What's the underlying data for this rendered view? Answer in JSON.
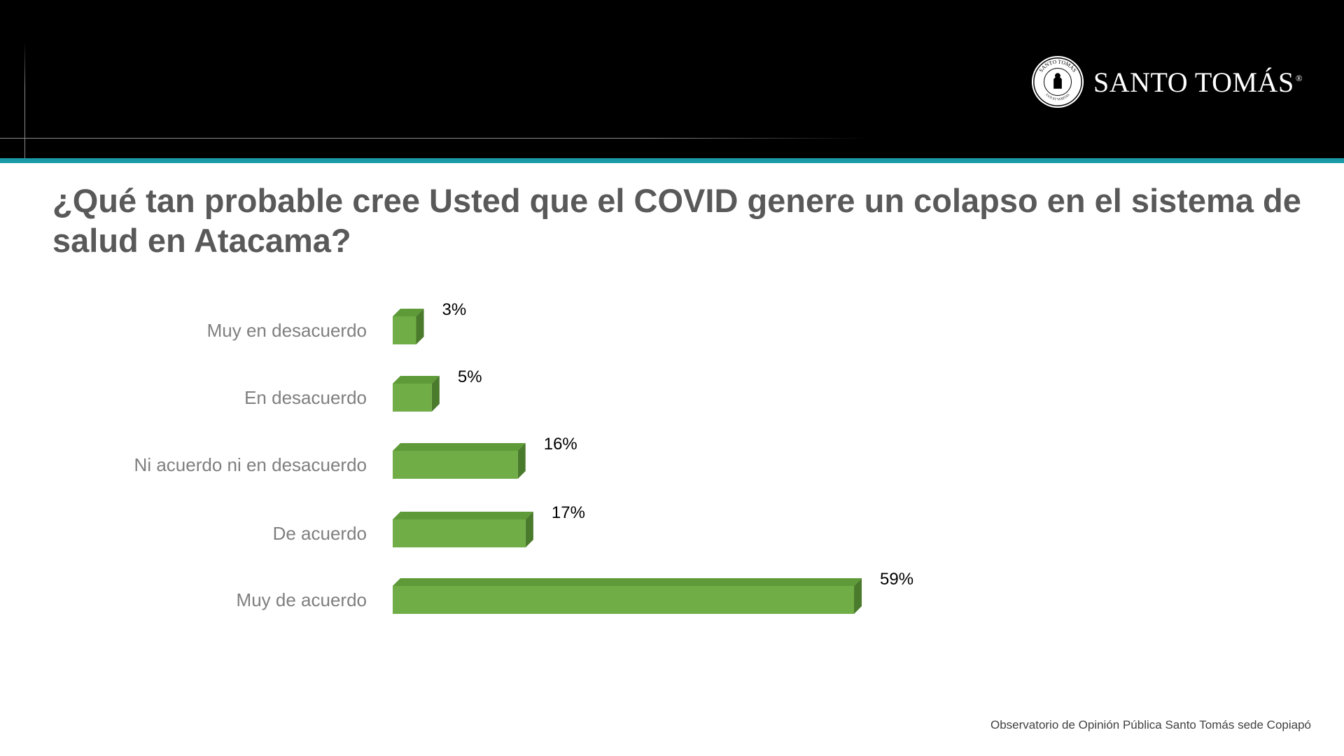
{
  "header": {
    "logo_text": "SANTO TOMÁS",
    "logo_registered": "®",
    "seal_top_text": "SANTO TOMÁS",
    "seal_bottom_text": "LUX ET VERITAS"
  },
  "title": "¿Qué tan probable cree Usted que el COVID genere un colapso en el sistema de salud en Atacama?",
  "chart_data": {
    "type": "bar",
    "orientation": "horizontal",
    "style": "3d",
    "categories": [
      "Muy en desacuerdo",
      "En desacuerdo",
      "Ni acuerdo ni en desacuerdo",
      "De acuerdo",
      "Muy de acuerdo"
    ],
    "values": [
      3,
      5,
      16,
      17,
      59
    ],
    "value_labels": [
      "3%",
      "5%",
      "16%",
      "17%",
      "59%"
    ],
    "unit": "%",
    "xlim": [
      0,
      60
    ],
    "grid": false,
    "legend": "none",
    "bar_color": "#70ad47",
    "bar_top_color": "#5e9a38",
    "bar_side_color": "#4a7a2b"
  },
  "footer": "Observatorio de Opinión Pública Santo Tomás sede Copiapó"
}
